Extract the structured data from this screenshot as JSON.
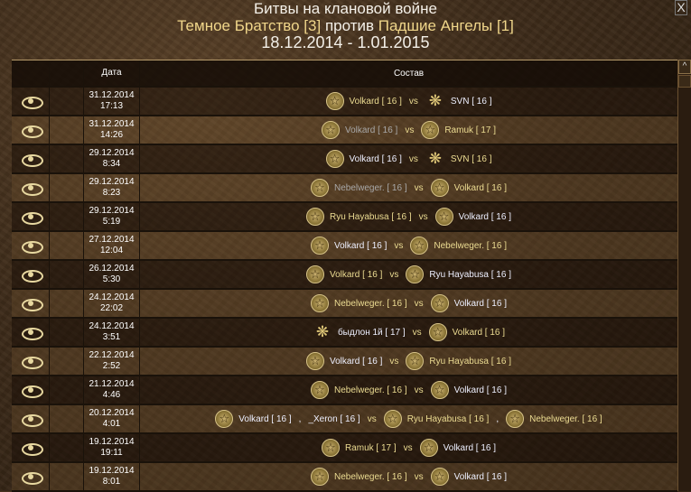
{
  "header": {
    "title": "Битвы на клановой войне",
    "clan1": "Темное Братство [3]",
    "versus": "против",
    "clan2": "Падшие Ангелы [1]",
    "period": "18.12.2014 - 1.01.2015",
    "close_label": "X"
  },
  "table": {
    "columns": [
      "",
      "",
      "Дата",
      "Состав"
    ],
    "vs_label": "vs",
    "rows": [
      {
        "date": "31.12.2014",
        "time": "17:13",
        "left": [
          {
            "icon": "pentagram",
            "name": "Volkard [ 16 ]",
            "color": "yellow"
          }
        ],
        "right": [
          {
            "icon": "dragon",
            "name": "SVN [ 16 ]",
            "color": "white"
          }
        ]
      },
      {
        "date": "31.12.2014",
        "time": "14:26",
        "left": [
          {
            "icon": "pentagram",
            "name": "Volkard [ 16 ]",
            "color": "gray"
          }
        ],
        "right": [
          {
            "icon": "pentagram",
            "name": "Ramuk [ 17 ]",
            "color": "yellow"
          }
        ]
      },
      {
        "date": "29.12.2014",
        "time": "8:34",
        "left": [
          {
            "icon": "pentagram",
            "name": "Volkard [ 16 ]",
            "color": "white"
          }
        ],
        "right": [
          {
            "icon": "dragon",
            "name": "SVN [ 16 ]",
            "color": "yellow"
          }
        ]
      },
      {
        "date": "29.12.2014",
        "time": "8:23",
        "left": [
          {
            "icon": "pentagram",
            "name": "Nebelweger. [ 16 ]",
            "color": "gray"
          }
        ],
        "right": [
          {
            "icon": "pentagram",
            "name": "Volkard [ 16 ]",
            "color": "yellow"
          }
        ]
      },
      {
        "date": "29.12.2014",
        "time": "5:19",
        "left": [
          {
            "icon": "pentagram",
            "name": "Ryu Hayabusa [ 16 ]",
            "color": "yellow"
          }
        ],
        "right": [
          {
            "icon": "pentagram",
            "name": "Volkard [ 16 ]",
            "color": "white"
          }
        ]
      },
      {
        "date": "27.12.2014",
        "time": "12:04",
        "left": [
          {
            "icon": "pentagram",
            "name": "Volkard [ 16 ]",
            "color": "white"
          }
        ],
        "right": [
          {
            "icon": "pentagram",
            "name": "Nebelweger. [ 16 ]",
            "color": "yellow"
          }
        ]
      },
      {
        "date": "26.12.2014",
        "time": "5:30",
        "left": [
          {
            "icon": "pentagram",
            "name": "Volkard [ 16 ]",
            "color": "yellow"
          }
        ],
        "right": [
          {
            "icon": "pentagram",
            "name": "Ryu Hayabusa [ 16 ]",
            "color": "white"
          }
        ]
      },
      {
        "date": "24.12.2014",
        "time": "22:02",
        "left": [
          {
            "icon": "pentagram",
            "name": "Nebelweger. [ 16 ]",
            "color": "yellow"
          }
        ],
        "right": [
          {
            "icon": "pentagram",
            "name": "Volkard [ 16 ]",
            "color": "white"
          }
        ]
      },
      {
        "date": "24.12.2014",
        "time": "3:51",
        "left": [
          {
            "icon": "dragon",
            "name": "быдлон 1й [ 17 ]",
            "color": "white"
          }
        ],
        "right": [
          {
            "icon": "pentagram",
            "name": "Volkard [ 16 ]",
            "color": "yellow"
          }
        ]
      },
      {
        "date": "22.12.2014",
        "time": "2:52",
        "left": [
          {
            "icon": "pentagram",
            "name": "Volkard [ 16 ]",
            "color": "white"
          }
        ],
        "right": [
          {
            "icon": "pentagram",
            "name": "Ryu Hayabusa [ 16 ]",
            "color": "yellow"
          }
        ]
      },
      {
        "date": "21.12.2014",
        "time": "4:46",
        "left": [
          {
            "icon": "pentagram",
            "name": "Nebelweger. [ 16 ]",
            "color": "yellow"
          }
        ],
        "right": [
          {
            "icon": "pentagram",
            "name": "Volkard [ 16 ]",
            "color": "white"
          }
        ]
      },
      {
        "date": "20.12.2014",
        "time": "4:01",
        "left": [
          {
            "icon": "pentagram",
            "name": "Volkard [ 16 ]",
            "color": "white"
          },
          {
            "icon": "none",
            "name": "_Xeron [ 16 ]",
            "color": "white"
          }
        ],
        "right": [
          {
            "icon": "pentagram",
            "name": "Ryu Hayabusa [ 16 ]",
            "color": "yellow"
          },
          {
            "icon": "pentagram",
            "name": "Nebelweger. [ 16 ]",
            "color": "yellow"
          }
        ]
      },
      {
        "date": "19.12.2014",
        "time": "19:11",
        "left": [
          {
            "icon": "pentagram",
            "name": "Ramuk [ 17 ]",
            "color": "yellow"
          }
        ],
        "right": [
          {
            "icon": "pentagram",
            "name": "Volkard [ 16 ]",
            "color": "white"
          }
        ]
      },
      {
        "date": "19.12.2014",
        "time": "8:01",
        "left": [
          {
            "icon": "pentagram",
            "name": "Nebelweger. [ 16 ]",
            "color": "yellow"
          }
        ],
        "right": [
          {
            "icon": "pentagram",
            "name": "Volkard [ 16 ]",
            "color": "white"
          }
        ]
      }
    ]
  },
  "colors": {
    "yellow": "#ecdc92",
    "white": "#eef0ff",
    "gray": "#a8a8a8"
  }
}
